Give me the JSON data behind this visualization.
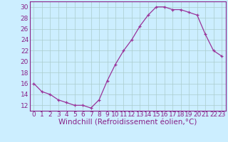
{
  "x": [
    0,
    1,
    2,
    3,
    4,
    5,
    6,
    7,
    8,
    9,
    10,
    11,
    12,
    13,
    14,
    15,
    16,
    17,
    18,
    19,
    20,
    21,
    22,
    23
  ],
  "y": [
    16,
    14.5,
    14,
    13,
    12.5,
    12,
    12,
    11.5,
    13,
    16.5,
    19.5,
    22,
    24,
    26.5,
    28.5,
    30,
    30,
    29.5,
    29.5,
    29,
    28.5,
    25,
    22,
    21
  ],
  "line_color": "#993399",
  "marker": "+",
  "bg_color": "#cceeff",
  "grid_color": "#aacccc",
  "xlabel": "Windchill (Refroidissement éolien,°C)",
  "xlim": [
    -0.5,
    23.5
  ],
  "ylim": [
    11,
    31
  ],
  "yticks": [
    12,
    14,
    16,
    18,
    20,
    22,
    24,
    26,
    28,
    30
  ],
  "xticks": [
    0,
    1,
    2,
    3,
    4,
    5,
    6,
    7,
    8,
    9,
    10,
    11,
    12,
    13,
    14,
    15,
    16,
    17,
    18,
    19,
    20,
    21,
    22,
    23
  ],
  "font_color": "#882288",
  "tick_fontsize": 6.5,
  "xlabel_fontsize": 7.5
}
